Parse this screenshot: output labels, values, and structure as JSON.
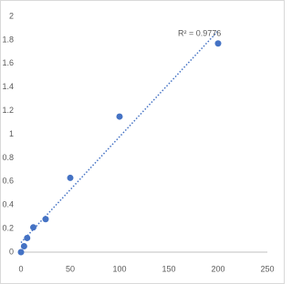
{
  "chart_data": {
    "type": "scatter",
    "annotation": "R² = 0.9776",
    "series": [
      {
        "color": "#4472c4",
        "x": [
          0,
          3.125,
          6.25,
          12.5,
          25,
          50,
          100,
          200
        ],
        "values": [
          0.0,
          0.05,
          0.12,
          0.21,
          0.28,
          0.63,
          1.15,
          1.77
        ]
      }
    ],
    "trendline": "linear",
    "xlim": [
      0,
      250
    ],
    "xticks": [
      0,
      50,
      100,
      150,
      200,
      250
    ],
    "ylim": [
      0,
      2
    ],
    "yticks": [
      0,
      0.2,
      0.4,
      0.6,
      0.8,
      1,
      1.2,
      1.4,
      1.6,
      1.8,
      2
    ],
    "grid": false
  }
}
